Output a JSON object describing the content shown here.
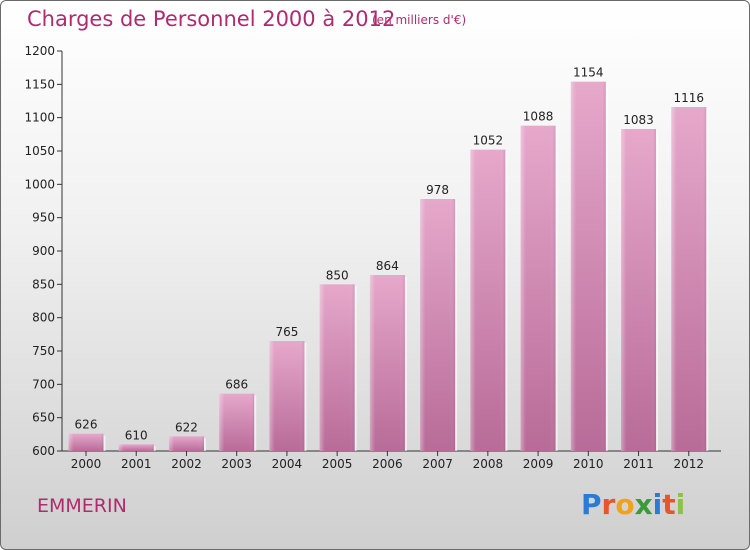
{
  "chart_data": {
    "type": "bar",
    "title": "Charges de Personnel 2000 à 2012",
    "subtitle": "(en milliers d'€)",
    "categories": [
      "2000",
      "2001",
      "2002",
      "2003",
      "2004",
      "2005",
      "2006",
      "2007",
      "2008",
      "2009",
      "2010",
      "2011",
      "2012"
    ],
    "values": [
      626,
      610,
      622,
      686,
      765,
      850,
      864,
      978,
      1052,
      1088,
      1154,
      1083,
      1116
    ],
    "ylim": [
      600,
      1200
    ],
    "yticks": [
      600,
      650,
      700,
      750,
      800,
      850,
      900,
      950,
      1000,
      1050,
      1100,
      1150,
      1200
    ],
    "xlabel": "",
    "ylabel": "",
    "grid": false,
    "bar_color": "#d48fb6"
  },
  "commune": "EMMERIN",
  "logo": {
    "letters": [
      "P",
      "r",
      "o",
      "x",
      "i",
      "t",
      "i"
    ],
    "colors": [
      "#2b7bd6",
      "#e8552a",
      "#f0a21a",
      "#3a9b3a",
      "#2b7bd6",
      "#e8552a",
      "#8bc34a"
    ]
  },
  "colors": {
    "accent": "#b02b6e",
    "axis": "#333333"
  }
}
